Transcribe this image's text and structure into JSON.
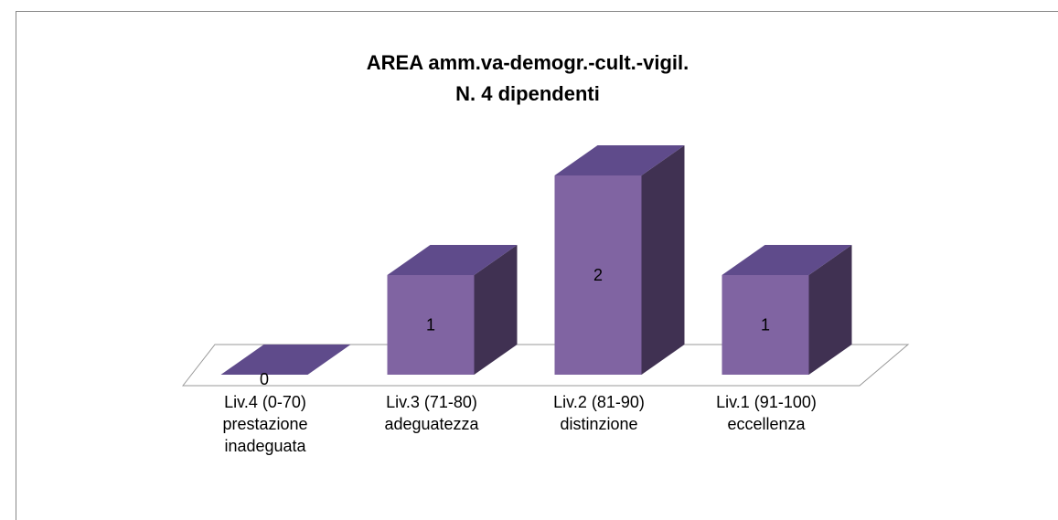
{
  "chart_data": {
    "type": "bar3d",
    "title": "AREA amm.va-demogr.-cult.-vigil.",
    "subtitle": "N. 4 dipendenti",
    "categories": [
      "Liv.4 (0-70)\nprestazione\ninadeguata",
      "Liv.3 (71-80)\nadeguatezza",
      "Liv.2 (81-90)\ndistinzione",
      "Liv.1 (91-100)\neccellenza"
    ],
    "values": [
      0,
      1,
      2,
      1
    ],
    "color": "#8064a2",
    "ylim": [
      0,
      2
    ]
  }
}
